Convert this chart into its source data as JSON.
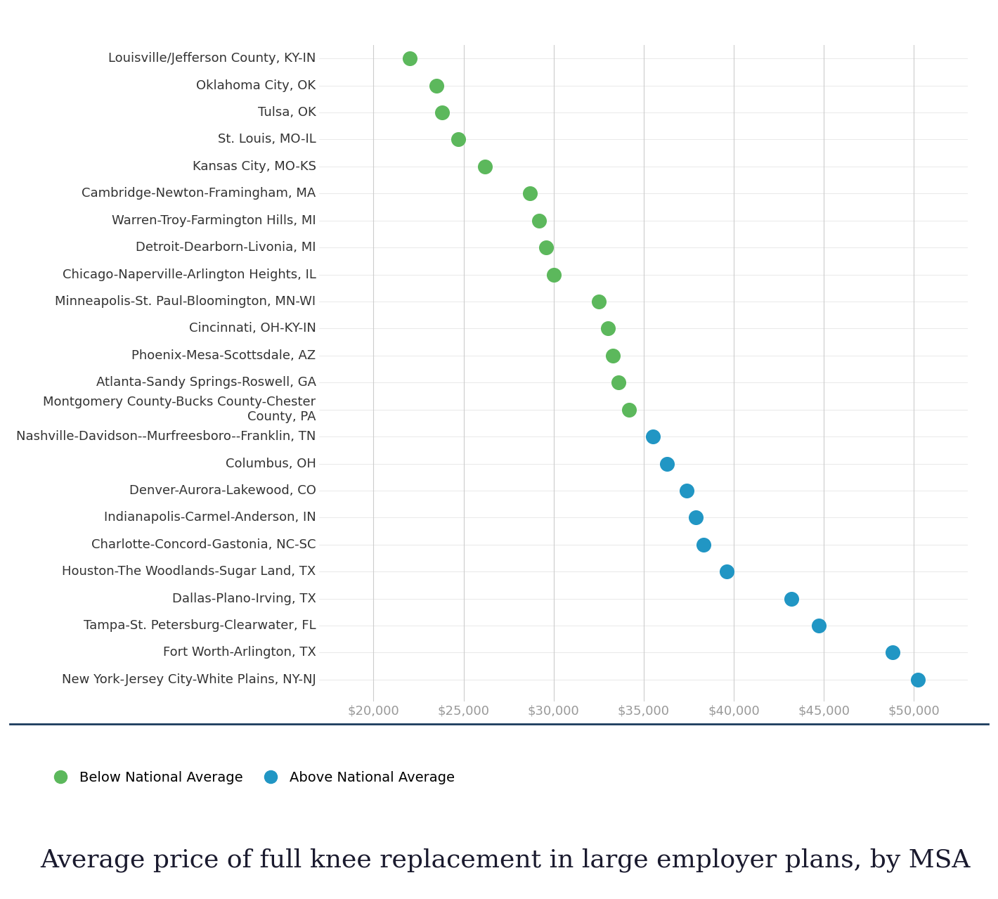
{
  "categories": [
    "Louisville/Jefferson County, KY-IN",
    "Oklahoma City, OK",
    "Tulsa, OK",
    "St. Louis, MO-IL",
    "Kansas City, MO-KS",
    "Cambridge-Newton-Framingham, MA",
    "Warren-Troy-Farmington Hills, MI",
    "Detroit-Dearborn-Livonia, MI",
    "Chicago-Naperville-Arlington Heights, IL",
    "Minneapolis-St. Paul-Bloomington, MN-WI",
    "Cincinnati, OH-KY-IN",
    "Phoenix-Mesa-Scottsdale, AZ",
    "Atlanta-Sandy Springs-Roswell, GA",
    "Montgomery County-Bucks County-Chester\nCounty, PA",
    "Nashville-Davidson--Murfreesboro--Franklin, TN",
    "Columbus, OH",
    "Denver-Aurora-Lakewood, CO",
    "Indianapolis-Carmel-Anderson, IN",
    "Charlotte-Concord-Gastonia, NC-SC",
    "Houston-The Woodlands-Sugar Land, TX",
    "Dallas-Plano-Irving, TX",
    "Tampa-St. Petersburg-Clearwater, FL",
    "Fort Worth-Arlington, TX",
    "New York-Jersey City-White Plains, NY-NJ"
  ],
  "values": [
    22000,
    23500,
    23800,
    24700,
    26200,
    28700,
    29200,
    29600,
    30000,
    32500,
    33000,
    33300,
    33600,
    34200,
    35500,
    36300,
    37400,
    37900,
    38300,
    39600,
    43200,
    44700,
    48800,
    50200
  ],
  "colors": [
    "#5cb85c",
    "#5cb85c",
    "#5cb85c",
    "#5cb85c",
    "#5cb85c",
    "#5cb85c",
    "#5cb85c",
    "#5cb85c",
    "#5cb85c",
    "#5cb85c",
    "#5cb85c",
    "#5cb85c",
    "#5cb85c",
    "#5cb85c",
    "#2196c4",
    "#2196c4",
    "#2196c4",
    "#2196c4",
    "#2196c4",
    "#2196c4",
    "#2196c4",
    "#2196c4",
    "#2196c4",
    "#2196c4"
  ],
  "xlim": [
    17000,
    53000
  ],
  "xticks": [
    20000,
    25000,
    30000,
    35000,
    40000,
    45000,
    50000
  ],
  "title": "Average price of full knee replacement in large employer plans, by MSA",
  "legend_labels": [
    "Below National Average",
    "Above National Average"
  ],
  "legend_colors": [
    "#5cb85c",
    "#2196c4"
  ],
  "background_color": "#ffffff",
  "grid_color": "#cccccc",
  "separator_color": "#1a3a5c",
  "title_fontsize": 26,
  "label_fontsize": 13,
  "tick_fontsize": 13,
  "legend_fontsize": 14,
  "dot_size": 200
}
